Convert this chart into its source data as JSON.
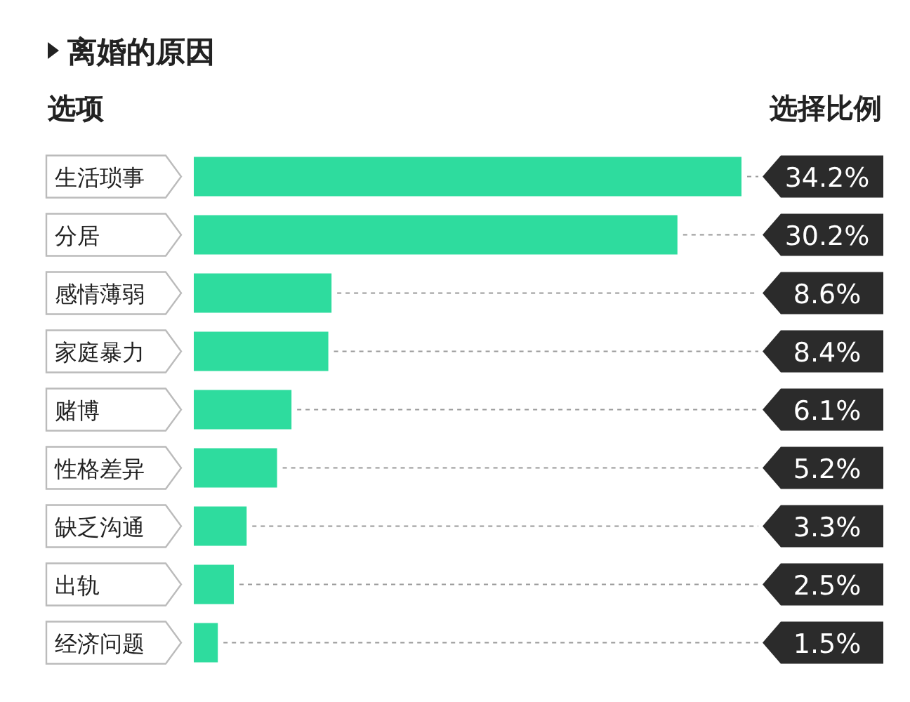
{
  "chart_data": {
    "type": "bar",
    "orientation": "horizontal",
    "title": "离婚的原因",
    "ylabel": "选项",
    "xlabel": "选择比例",
    "categories": [
      "生活琐事",
      "分居",
      "感情薄弱",
      "家庭暴力",
      "赌博",
      "性格差异",
      "缺乏沟通",
      "出轨",
      "经济问题"
    ],
    "values": [
      34.2,
      30.2,
      8.6,
      8.4,
      6.1,
      5.2,
      3.3,
      2.5,
      1.5
    ],
    "value_labels": [
      "34.2%",
      "30.2%",
      "8.6%",
      "8.4%",
      "6.1%",
      "5.2%",
      "3.3%",
      "2.5%",
      "1.5%"
    ],
    "color": "#2edc9e"
  }
}
